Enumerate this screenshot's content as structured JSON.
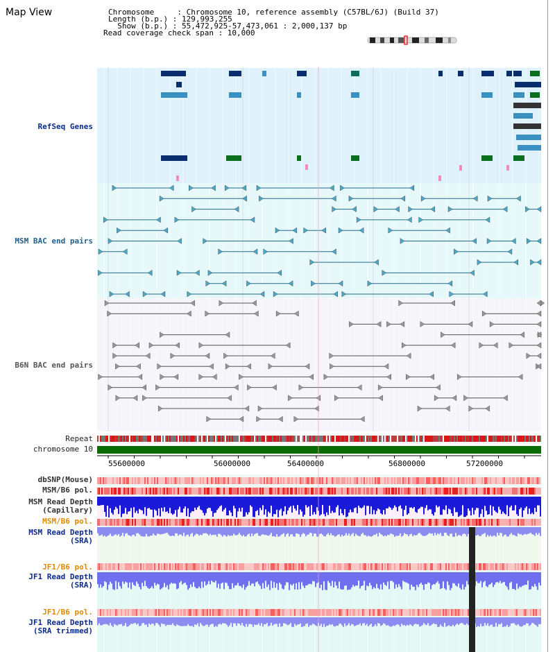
{
  "header": {
    "title": "Map View",
    "chromosome_line": "Chromosome     : Chromosome 10, reference assembly (C57BL/6J) (Build 37)",
    "length_line": "Length (b.p.) : 129,993,255",
    "show_line": "  Show (b.p.) : 55,472,925-57,473,061 : 2,000,137 bp",
    "coverage_line": "Read coverage check span : 10,000"
  },
  "tracks": {
    "refseq": "RefSeq Genes",
    "msm_bac": "MSM BAC end pairs",
    "b6n_bac": "B6N BAC end pairs",
    "repeat": "Repeat",
    "chromosome": "chromosome 10",
    "dbsnp": "dbSNP(Mouse)",
    "msm_b6_pol": "MSM/B6 pol.",
    "msm_depth_cap_1": "MSM Read Depth",
    "msm_depth_cap_2": "(Capillary)",
    "msm_b6_pol_2": "MSM/B6 pol.",
    "msm_depth_sra_1": "MSM Read Depth",
    "msm_depth_sra_2": "(SRA)",
    "jf1_pol_1": "JF1/B6 pol.",
    "jf1_depth_1": "JF1 Read Depth",
    "jf1_depth_2": "(SRA)",
    "jf1_pol_2": "JF1/B6 pol.",
    "jf1_trim_1": "JF1 Read Depth",
    "jf1_trim_2": "(SRA trimmed)"
  },
  "axis": {
    "ticks": [
      "55600000",
      "56000000",
      "56400000",
      "56800000",
      "57200000"
    ]
  },
  "colors": {
    "refseq_bg": "#dff2fb",
    "msm_bg": "#e4f8fb",
    "b6n_bg": "#f4f4fa",
    "dark_gene": "#0a2d6e",
    "green_gene": "#0a6e1e",
    "chrom_bar": "#0a6b00",
    "depth_blue": "#1a1ad8",
    "depth_light": "#8c8cf0"
  }
}
